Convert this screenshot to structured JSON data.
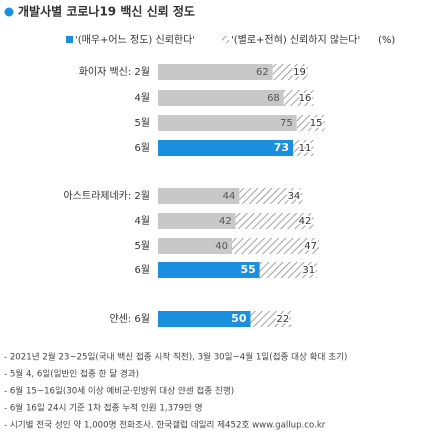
{
  "chart_data": {
    "type": "bar",
    "title": "개발사별 코로나19 백신 신뢰 정도",
    "unit": "(%)",
    "categories": [
      "화이자 백신: 2월",
      "4월",
      "5월",
      "6월",
      "아스트라제네카: 2월",
      "4월",
      "5월",
      "6월",
      "얀센: 6월"
    ],
    "series": [
      {
        "name": "'(매우+어느 정도) 신뢰한다'",
        "color": "#1a8fe0",
        "colors": [
          "#c8c8c8",
          "#c8c8c8",
          "#c8c8c8",
          "#1a8fe0",
          "#c8c8c8",
          "#c8c8c8",
          "#c8c8c8",
          "#1a8fe0",
          "#1a8fe0"
        ],
        "values": [
          62,
          68,
          75,
          73,
          44,
          42,
          40,
          55,
          50
        ]
      },
      {
        "name": "'(별로+전혀) 신뢰하지 않는다'",
        "color": "#8a8a8a",
        "values": [
          19,
          16,
          15,
          11,
          34,
          42,
          47,
          31,
          22
        ]
      }
    ],
    "xlim": [
      0,
      100
    ],
    "notes": [
      "- 2021년 2월 23~25일(국내 백신 접종 시작 직전), 3월 30일~4월 1일(접종 대상 확대 초기)",
      "- 5월 4, 6일(일반인 접종 한 달 경과)",
      "- 6월 15~16일(30세 이상 예비군·민방위 대상 얀센 접종 진행)",
      "- 6월 16일 24시 기준 1차 접종 누적 인원 1,379만 명",
      "- 시기별 전국 성인 약 1,000명 전화조사. 한국갤럽 데일리 제452호 www.gallup.co.kr"
    ]
  }
}
